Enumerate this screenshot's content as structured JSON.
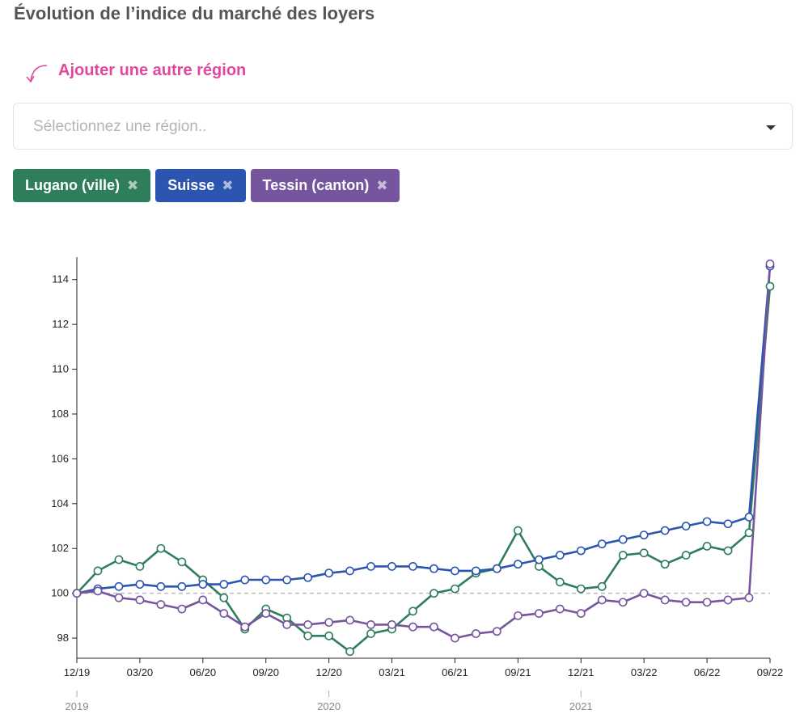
{
  "page": {
    "title": "Évolution de l’indice du marché des loyers",
    "add_region_label": "Ajouter une autre région",
    "select_placeholder": "Sélectionnez une région..",
    "arrow_icon": "curved-arrow-icon",
    "accent_color": "#e0479e"
  },
  "tags": [
    {
      "label": "Lugano (ville)",
      "color": "#2e7d5b",
      "remove_icon": "close-icon"
    },
    {
      "label": "Suisse",
      "color": "#2b55b0",
      "remove_icon": "close-icon"
    },
    {
      "label": "Tessin (canton)",
      "color": "#75559e",
      "remove_icon": "close-icon"
    }
  ],
  "chart_data": {
    "type": "line",
    "title": "",
    "xlabel": "",
    "ylabel": "",
    "ylim": [
      97.1,
      115
    ],
    "yticks": [
      98,
      100,
      102,
      104,
      106,
      108,
      110,
      112,
      114
    ],
    "baseline": 100,
    "x": [
      "2019-12",
      "2020-01",
      "2020-02",
      "2020-03",
      "2020-04",
      "2020-05",
      "2020-06",
      "2020-07",
      "2020-08",
      "2020-09",
      "2020-10",
      "2020-11",
      "2020-12",
      "2021-01",
      "2021-02",
      "2021-03",
      "2021-04",
      "2021-05",
      "2021-06",
      "2021-07",
      "2021-08",
      "2021-09",
      "2021-10",
      "2021-11",
      "2021-12",
      "2022-01",
      "2022-02",
      "2022-03",
      "2022-04",
      "2022-05",
      "2022-06",
      "2022-07",
      "2022-08",
      "2022-09"
    ],
    "xticks": [
      "12/19",
      "03/20",
      "06/20",
      "09/20",
      "12/20",
      "03/21",
      "06/21",
      "09/21",
      "12/21",
      "03/22",
      "06/22",
      "09/22"
    ],
    "year_ticks": [
      {
        "label": "2019",
        "at": "2019-12"
      },
      {
        "label": "2020",
        "at": "2020-12"
      },
      {
        "label": "2021",
        "at": "2021-12"
      }
    ],
    "series": [
      {
        "name": "Lugano (ville)",
        "color": "#2e7d5b",
        "values": [
          100.0,
          101.0,
          101.5,
          101.2,
          102.0,
          101.4,
          100.6,
          99.8,
          98.4,
          99.3,
          98.9,
          98.1,
          98.1,
          97.4,
          98.2,
          98.4,
          99.2,
          100.0,
          100.2,
          100.9,
          101.1,
          102.8,
          101.2,
          100.5,
          100.2,
          100.3,
          101.7,
          101.8,
          101.3,
          101.7,
          102.1,
          101.9,
          102.7,
          113.7
        ]
      },
      {
        "name": "Suisse",
        "color": "#2b55b0",
        "values": [
          100.0,
          100.2,
          100.3,
          100.4,
          100.3,
          100.3,
          100.4,
          100.4,
          100.6,
          100.6,
          100.6,
          100.7,
          100.9,
          101.0,
          101.2,
          101.2,
          101.2,
          101.1,
          101.0,
          101.0,
          101.1,
          101.3,
          101.5,
          101.7,
          101.9,
          102.2,
          102.4,
          102.6,
          102.8,
          103.0,
          103.2,
          103.1,
          103.4,
          114.6
        ]
      },
      {
        "name": "Tessin (canton)",
        "color": "#75559e",
        "values": [
          100.0,
          100.1,
          99.8,
          99.7,
          99.5,
          99.3,
          99.7,
          99.1,
          98.5,
          99.1,
          98.6,
          98.6,
          98.7,
          98.8,
          98.6,
          98.6,
          98.5,
          98.5,
          98.0,
          98.2,
          98.3,
          99.0,
          99.1,
          99.3,
          99.1,
          99.7,
          99.6,
          100.0,
          99.7,
          99.6,
          99.6,
          99.7,
          99.8,
          114.7
        ]
      }
    ],
    "grid": false,
    "legend": "none"
  }
}
